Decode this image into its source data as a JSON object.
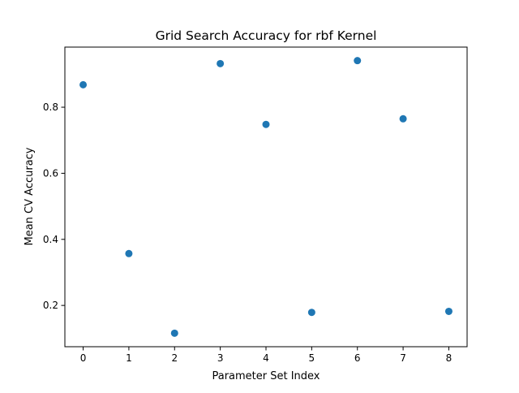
{
  "chart_data": {
    "type": "scatter",
    "title": "Grid Search Accuracy for rbf Kernel",
    "xlabel": "Parameter Set Index",
    "ylabel": "Mean CV Accuracy",
    "x": [
      0,
      1,
      2,
      3,
      4,
      5,
      6,
      7,
      8
    ],
    "y": [
      0.868,
      0.357,
      0.116,
      0.932,
      0.748,
      0.179,
      0.941,
      0.765,
      0.182
    ],
    "xlim": [
      -0.4,
      8.4
    ],
    "ylim": [
      0.075,
      0.982
    ],
    "xticks": [
      "0",
      "1",
      "2",
      "3",
      "4",
      "5",
      "6",
      "7",
      "8"
    ],
    "yticks": [
      "0.2",
      "0.4",
      "0.6",
      "0.8"
    ],
    "grid": false,
    "colors": {
      "marker": "#1f77b4",
      "axis": "#000000"
    }
  }
}
